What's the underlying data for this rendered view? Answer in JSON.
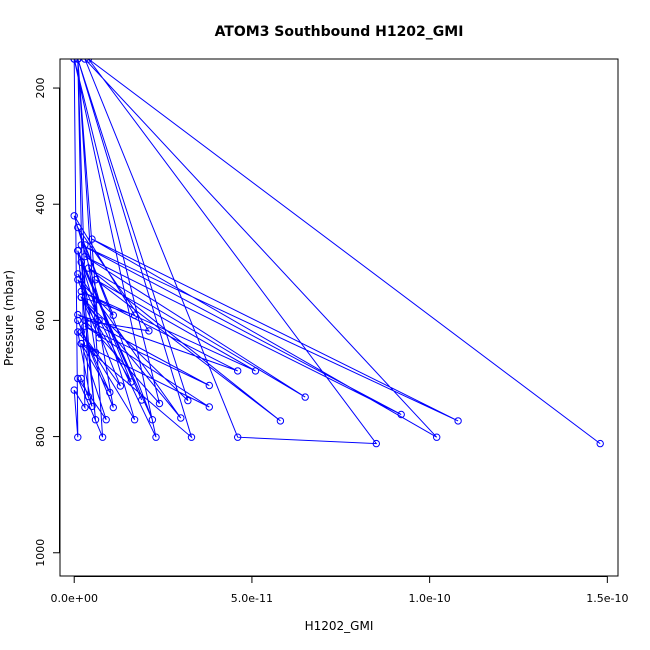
{
  "chart_data": {
    "type": "line",
    "title": "ATOM3 Southbound H1202_GMI",
    "xlabel": "H1202_GMI",
    "ylabel": "Pressure (mbar)",
    "xlim": [
      -4e-12,
      1.53e-10
    ],
    "ylim": [
      1040,
      150
    ],
    "y_reversed": true,
    "grid": false,
    "x_ticks": [
      0,
      5e-11,
      1e-10,
      1.5e-10
    ],
    "x_tick_labels": [
      "0.0e+00",
      "5.0e-11",
      "1.0e-10",
      "1.5e-10"
    ],
    "y_ticks": [
      200,
      400,
      600,
      800,
      1000
    ],
    "y_tick_labels": [
      "200",
      "400",
      "600",
      "800",
      "1000"
    ],
    "series": [
      {
        "color": "#0000ff",
        "marker": "open-circle",
        "points": [
          {
            "x": 1.48e-10,
            "y": 812
          },
          {
            "x": 4e-12,
            "y": 150
          },
          {
            "x": 8.5e-11,
            "y": 812
          },
          {
            "x": 4.6e-11,
            "y": 801
          },
          {
            "x": 3e-12,
            "y": 150
          },
          {
            "x": 1.02e-10,
            "y": 801
          },
          {
            "x": 5e-12,
            "y": 460
          },
          {
            "x": 1.08e-10,
            "y": 773
          },
          {
            "x": 2e-12,
            "y": 470
          },
          {
            "x": 9.2e-11,
            "y": 762
          },
          {
            "x": 3e-12,
            "y": 490
          },
          {
            "x": 6.5e-11,
            "y": 732
          },
          {
            "x": 4e-12,
            "y": 510
          },
          {
            "x": 5.8e-11,
            "y": 773
          },
          {
            "x": 6e-12,
            "y": 530
          },
          {
            "x": 5.1e-11,
            "y": 687
          },
          {
            "x": 2e-12,
            "y": 550
          },
          {
            "x": 4.6e-11,
            "y": 687
          },
          {
            "x": 1e-12,
            "y": 590
          },
          {
            "x": 3.8e-11,
            "y": 712
          },
          {
            "x": 3e-12,
            "y": 610
          },
          {
            "x": 3.8e-11,
            "y": 749
          },
          {
            "x": 2e-12,
            "y": 640
          },
          {
            "x": 3.3e-11,
            "y": 801
          },
          {
            "x": 1e-12,
            "y": 150
          },
          {
            "x": 3.2e-11,
            "y": 738
          },
          {
            "x": 2e-12,
            "y": 560
          },
          {
            "x": 3e-11,
            "y": 768
          },
          {
            "x": 1e-12,
            "y": 520
          },
          {
            "x": 2.3e-11,
            "y": 801
          },
          {
            "x": 0,
            "y": 150
          },
          {
            "x": 2.4e-11,
            "y": 743
          },
          {
            "x": 3e-12,
            "y": 600
          },
          {
            "x": 2.1e-11,
            "y": 618
          },
          {
            "x": 1e-12,
            "y": 440
          },
          {
            "x": 2.2e-11,
            "y": 771
          },
          {
            "x": 2e-12,
            "y": 500
          },
          {
            "x": 1.9e-11,
            "y": 737
          },
          {
            "x": 1e-12,
            "y": 480
          },
          {
            "x": 1.6e-11,
            "y": 706
          },
          {
            "x": 2e-12,
            "y": 560
          },
          {
            "x": 1.7e-11,
            "y": 591
          },
          {
            "x": 0,
            "y": 420
          },
          {
            "x": 1.7e-11,
            "y": 771
          },
          {
            "x": 2e-12,
            "y": 620
          },
          {
            "x": 1.3e-11,
            "y": 713
          },
          {
            "x": 1e-12,
            "y": 530
          },
          {
            "x": 1.1e-11,
            "y": 591
          },
          {
            "x": 3e-12,
            "y": 470
          },
          {
            "x": 1.1e-11,
            "y": 750
          },
          {
            "x": 1e-12,
            "y": 600
          },
          {
            "x": 1e-11,
            "y": 724
          },
          {
            "x": 2e-12,
            "y": 640
          },
          {
            "x": 9e-12,
            "y": 771
          },
          {
            "x": 1e-12,
            "y": 700
          },
          {
            "x": 8e-12,
            "y": 801
          },
          {
            "x": 1e-12,
            "y": 150
          },
          {
            "x": 7e-12,
            "y": 630
          },
          {
            "x": 2e-12,
            "y": 560
          },
          {
            "x": 7e-12,
            "y": 600
          },
          {
            "x": 1e-12,
            "y": 480
          },
          {
            "x": 6e-12,
            "y": 771
          },
          {
            "x": 2e-12,
            "y": 500
          },
          {
            "x": 6e-12,
            "y": 655
          },
          {
            "x": 1e-12,
            "y": 620
          },
          {
            "x": 5e-12,
            "y": 748
          },
          {
            "x": 2e-12,
            "y": 700
          },
          {
            "x": 4e-12,
            "y": 731
          },
          {
            "x": 1e-12,
            "y": 150
          },
          {
            "x": 3e-12,
            "y": 750
          },
          {
            "x": 0,
            "y": 720
          },
          {
            "x": 1e-12,
            "y": 801
          },
          {
            "x": 0,
            "y": 150
          }
        ]
      }
    ]
  }
}
